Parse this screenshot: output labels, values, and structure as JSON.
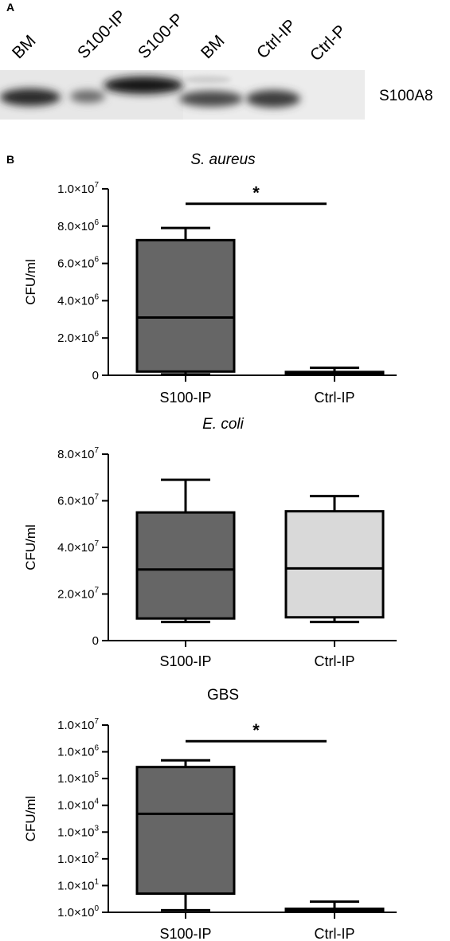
{
  "panel_a": {
    "letter": "A",
    "lanes": [
      "BM",
      "S100-IP",
      "S100-P",
      "BM",
      "Ctrl-IP",
      "Ctrl-P"
    ],
    "protein_label": "S100A8"
  },
  "panel_b": {
    "letter": "B"
  },
  "chart_data": [
    {
      "type": "box",
      "title": "S. aureus",
      "title_italic": true,
      "ylabel": "CFU/ml",
      "yscale": "linear",
      "ylim": [
        0,
        10000000
      ],
      "yticks": [
        0,
        2000000,
        4000000,
        6000000,
        8000000,
        10000000
      ],
      "ytick_labels": [
        {
          "m": "0",
          "e": ""
        },
        {
          "m": "2.0×10",
          "e": "6"
        },
        {
          "m": "4.0×10",
          "e": "6"
        },
        {
          "m": "6.0×10",
          "e": "6"
        },
        {
          "m": "8.0×10",
          "e": "6"
        },
        {
          "m": "1.0×10",
          "e": "7"
        }
      ],
      "categories": [
        "S100-IP",
        "Ctrl-IP"
      ],
      "boxes": [
        {
          "label": "S100-IP",
          "min": 50000,
          "q1": 200000,
          "median": 3100000,
          "q3": 7250000,
          "max": 7900000,
          "fill": "#666666"
        },
        {
          "label": "Ctrl-IP",
          "min": 20000,
          "q1": 50000,
          "median": 100000,
          "q3": 150000,
          "max": 400000,
          "fill": "#666666"
        }
      ],
      "significance": {
        "text": "*",
        "value": 9200000
      }
    },
    {
      "type": "box",
      "title": "E. coli",
      "title_italic": true,
      "ylabel": "CFU/ml",
      "yscale": "linear",
      "ylim": [
        0,
        80000000
      ],
      "yticks": [
        0,
        20000000,
        40000000,
        60000000,
        80000000
      ],
      "ytick_labels": [
        {
          "m": "0",
          "e": ""
        },
        {
          "m": "2.0×10",
          "e": "7"
        },
        {
          "m": "4.0×10",
          "e": "7"
        },
        {
          "m": "6.0×10",
          "e": "7"
        },
        {
          "m": "8.0×10",
          "e": "7"
        }
      ],
      "categories": [
        "S100-IP",
        "Ctrl-IP"
      ],
      "boxes": [
        {
          "label": "S100-IP",
          "min": 8000000,
          "q1": 9500000,
          "median": 30500000,
          "q3": 55000000,
          "max": 69000000,
          "fill": "#666666"
        },
        {
          "label": "Ctrl-IP",
          "min": 8000000,
          "q1": 10000000,
          "median": 31000000,
          "q3": 55500000,
          "max": 62000000,
          "fill": "#d9d9d9"
        }
      ]
    },
    {
      "type": "box",
      "title": "GBS",
      "title_italic": false,
      "ylabel": "CFU/ml",
      "yscale": "log",
      "ylim": [
        1,
        10000000
      ],
      "yticks": [
        1,
        10,
        100,
        1000,
        10000,
        100000,
        1000000,
        10000000
      ],
      "ytick_labels": [
        {
          "m": "1.0×10",
          "e": "0"
        },
        {
          "m": "1.0×10",
          "e": "1"
        },
        {
          "m": "1.0×10",
          "e": "2"
        },
        {
          "m": "1.0×10",
          "e": "3"
        },
        {
          "m": "1.0×10",
          "e": "4"
        },
        {
          "m": "1.0×10",
          "e": "5"
        },
        {
          "m": "1.0×10",
          "e": "6"
        },
        {
          "m": "1.0×10",
          "e": "7"
        }
      ],
      "categories": [
        "S100-IP",
        "Ctrl-IP"
      ],
      "boxes": [
        {
          "label": "S100-IP",
          "min": 1.2,
          "q1": 5,
          "median": 4800,
          "q3": 270000,
          "max": 480000,
          "fill": "#666666"
        },
        {
          "label": "Ctrl-IP",
          "min": 1.05,
          "q1": 1.1,
          "median": 1.2,
          "q3": 1.3,
          "max": 2.5,
          "fill": "#666666"
        }
      ],
      "significance": {
        "text": "*",
        "value": 2500000
      }
    }
  ],
  "colors": {
    "box_dark": "#666666",
    "box_light": "#d9d9d9",
    "blot_background": "#e7e7e7",
    "band": "#1e1e1e"
  }
}
